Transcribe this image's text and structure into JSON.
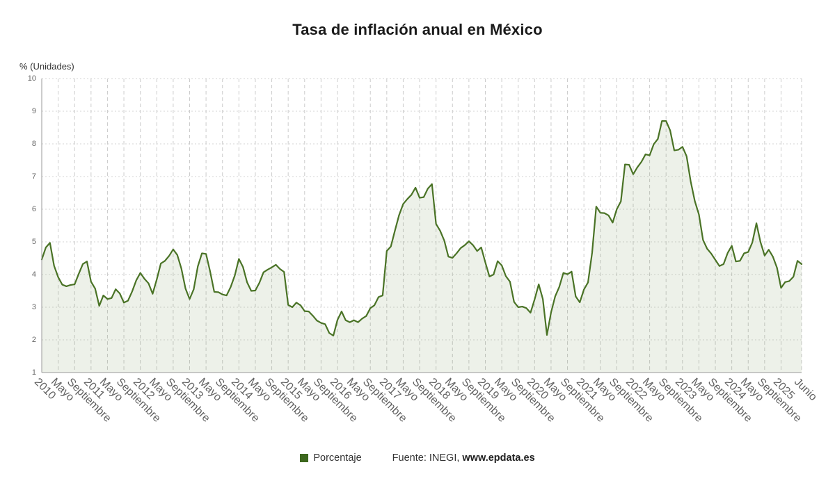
{
  "chart_data": {
    "type": "area",
    "title": "Tasa de inflación anual en México",
    "y_axis_title": "% (Unidades)",
    "legend_label": "Porcentaje",
    "legend_position": "bottom",
    "source_prefix": "Fuente: INEGI,",
    "source_link": "www.epdata.es",
    "ylim": [
      1,
      10
    ],
    "y_ticks": [
      1,
      2,
      3,
      4,
      5,
      6,
      7,
      8,
      9,
      10
    ],
    "x_start": "2010-01",
    "frequency": "monthly",
    "grid": true,
    "colors": {
      "line": "#4a7326",
      "fill": "rgba(110,140,70,0.12)",
      "swatch": "#3d671e",
      "grid_h": "#d6d6d6",
      "grid_v": "#cccccc",
      "axis": "#999999",
      "tick_text": "#616161",
      "title_text": "#1a1a1a"
    },
    "x_ticks": [
      {
        "i": 0,
        "label": "2010"
      },
      {
        "i": 4,
        "label": "Mayo"
      },
      {
        "i": 8,
        "label": "Septiembre"
      },
      {
        "i": 12,
        "label": "2011"
      },
      {
        "i": 16,
        "label": "Mayo"
      },
      {
        "i": 20,
        "label": "Septiembre"
      },
      {
        "i": 24,
        "label": "2012"
      },
      {
        "i": 28,
        "label": "Mayo"
      },
      {
        "i": 32,
        "label": "Septiembre"
      },
      {
        "i": 36,
        "label": "2013"
      },
      {
        "i": 40,
        "label": "Mayo"
      },
      {
        "i": 44,
        "label": "Septiembre"
      },
      {
        "i": 48,
        "label": "2014"
      },
      {
        "i": 52,
        "label": "Mayo"
      },
      {
        "i": 56,
        "label": "Septiembre"
      },
      {
        "i": 60,
        "label": "2015"
      },
      {
        "i": 64,
        "label": "Mayo"
      },
      {
        "i": 68,
        "label": "Septiembre"
      },
      {
        "i": 72,
        "label": "2016"
      },
      {
        "i": 76,
        "label": "Mayo"
      },
      {
        "i": 80,
        "label": "Septiembre"
      },
      {
        "i": 84,
        "label": "2017"
      },
      {
        "i": 88,
        "label": "Mayo"
      },
      {
        "i": 92,
        "label": "Septiembre"
      },
      {
        "i": 96,
        "label": "2018"
      },
      {
        "i": 100,
        "label": "Mayo"
      },
      {
        "i": 104,
        "label": "Septiembre"
      },
      {
        "i": 108,
        "label": "2019"
      },
      {
        "i": 112,
        "label": "Mayo"
      },
      {
        "i": 116,
        "label": "Septiembre"
      },
      {
        "i": 120,
        "label": "2020"
      },
      {
        "i": 124,
        "label": "Mayo"
      },
      {
        "i": 128,
        "label": "Septiembre"
      },
      {
        "i": 132,
        "label": "2021"
      },
      {
        "i": 136,
        "label": "Mayo"
      },
      {
        "i": 140,
        "label": "Septiembre"
      },
      {
        "i": 144,
        "label": "2022"
      },
      {
        "i": 148,
        "label": "Mayo"
      },
      {
        "i": 152,
        "label": "Septiembre"
      },
      {
        "i": 156,
        "label": "2023"
      },
      {
        "i": 160,
        "label": "Mayo"
      },
      {
        "i": 164,
        "label": "Septiembre"
      },
      {
        "i": 168,
        "label": "2024"
      },
      {
        "i": 172,
        "label": "Mayo"
      },
      {
        "i": 176,
        "label": "Septiembre"
      },
      {
        "i": 180,
        "label": "2025"
      },
      {
        "i": 185,
        "label": "Junio"
      }
    ],
    "values": [
      4.46,
      4.83,
      4.97,
      4.27,
      3.92,
      3.69,
      3.64,
      3.68,
      3.7,
      4.02,
      4.32,
      4.4,
      3.78,
      3.57,
      3.04,
      3.36,
      3.25,
      3.28,
      3.55,
      3.42,
      3.14,
      3.2,
      3.48,
      3.82,
      4.05,
      3.87,
      3.73,
      3.41,
      3.85,
      4.34,
      4.42,
      4.57,
      4.77,
      4.6,
      4.18,
      3.57,
      3.25,
      3.55,
      4.25,
      4.65,
      4.63,
      4.09,
      3.47,
      3.46,
      3.39,
      3.36,
      3.62,
      3.97,
      4.48,
      4.23,
      3.76,
      3.5,
      3.51,
      3.75,
      4.07,
      4.15,
      4.22,
      4.3,
      4.17,
      4.08,
      3.07,
      3.0,
      3.14,
      3.06,
      2.88,
      2.87,
      2.74,
      2.59,
      2.52,
      2.48,
      2.21,
      2.13,
      2.61,
      2.87,
      2.6,
      2.54,
      2.6,
      2.54,
      2.65,
      2.73,
      2.97,
      3.06,
      3.31,
      3.36,
      4.72,
      4.86,
      5.35,
      5.82,
      6.16,
      6.31,
      6.44,
      6.66,
      6.35,
      6.37,
      6.63,
      6.77,
      5.55,
      5.34,
      5.04,
      4.55,
      4.51,
      4.65,
      4.81,
      4.9,
      5.02,
      4.9,
      4.72,
      4.83,
      4.37,
      3.94,
      4.0,
      4.41,
      4.28,
      3.95,
      3.78,
      3.16,
      3.0,
      3.02,
      2.97,
      2.83,
      3.24,
      3.7,
      3.25,
      2.15,
      2.84,
      3.33,
      3.62,
      4.05,
      4.01,
      4.09,
      3.33,
      3.15,
      3.54,
      3.76,
      4.67,
      6.08,
      5.89,
      5.88,
      5.81,
      5.59,
      6.0,
      6.24,
      7.37,
      7.36,
      7.07,
      7.28,
      7.45,
      7.68,
      7.65,
      7.99,
      8.15,
      8.7,
      8.7,
      8.41,
      7.8,
      7.82,
      7.91,
      7.62,
      6.85,
      6.25,
      5.84,
      5.06,
      4.79,
      4.64,
      4.45,
      4.26,
      4.32,
      4.66,
      4.88,
      4.4,
      4.42,
      4.65,
      4.69,
      4.98,
      5.57,
      4.99,
      4.58,
      4.76,
      4.55,
      4.21,
      3.59,
      3.77,
      3.8,
      3.93,
      4.42,
      4.32
    ]
  }
}
